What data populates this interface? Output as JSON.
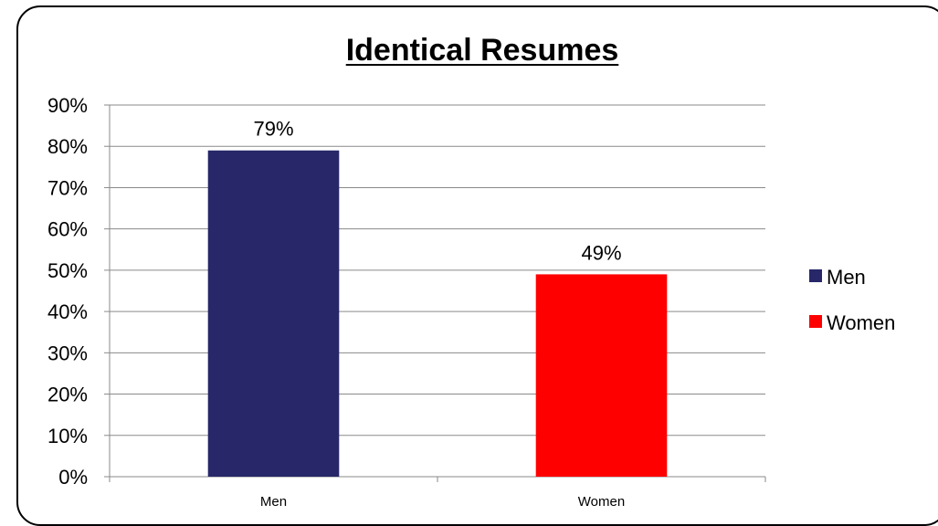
{
  "chart_data": {
    "type": "bar",
    "title": "Identical Resumes",
    "categories": [
      "Men",
      "Women"
    ],
    "values": [
      79,
      49
    ],
    "data_labels": [
      "79%",
      "49%"
    ],
    "colors": [
      "#272769",
      "#ff0000"
    ],
    "ylim": [
      0,
      90
    ],
    "yticks": [
      "0%",
      "10%",
      "20%",
      "30%",
      "40%",
      "50%",
      "60%",
      "70%",
      "80%",
      "90%"
    ],
    "grid": true,
    "legend": {
      "placement": "right",
      "entries": [
        {
          "label": "Men",
          "color": "#272769"
        },
        {
          "label": "Women",
          "color": "#ff0000"
        }
      ]
    },
    "xlabel": "",
    "ylabel": ""
  }
}
